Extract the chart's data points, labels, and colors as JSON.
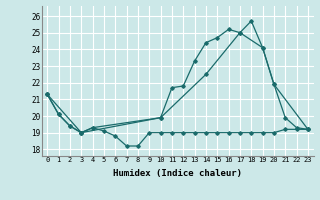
{
  "title": "",
  "xlabel": "Humidex (Indice chaleur)",
  "ylabel": "",
  "background_color": "#cce8e8",
  "grid_color": "#ffffff",
  "line_color": "#1a6b6b",
  "x_ticks": [
    0,
    1,
    2,
    3,
    4,
    5,
    6,
    7,
    8,
    9,
    10,
    11,
    12,
    13,
    14,
    15,
    16,
    17,
    18,
    19,
    20,
    21,
    22,
    23
  ],
  "y_ticks": [
    18,
    19,
    20,
    21,
    22,
    23,
    24,
    25,
    26
  ],
  "ylim": [
    17.6,
    26.6
  ],
  "xlim": [
    -0.5,
    23.5
  ],
  "line1_x": [
    0,
    1,
    2,
    3,
    4,
    5,
    6,
    7,
    8,
    9,
    10,
    11,
    12,
    13,
    14,
    15,
    16,
    17,
    18,
    19,
    20,
    21,
    22,
    23
  ],
  "line1_y": [
    21.3,
    20.1,
    19.4,
    19.0,
    19.3,
    19.1,
    18.8,
    18.2,
    18.2,
    19.0,
    19.0,
    19.0,
    19.0,
    19.0,
    19.0,
    19.0,
    19.0,
    19.0,
    19.0,
    19.0,
    19.0,
    19.2,
    19.2,
    19.2
  ],
  "line2_x": [
    0,
    1,
    2,
    3,
    4,
    10,
    11,
    12,
    13,
    14,
    15,
    16,
    17,
    18,
    19,
    20,
    21,
    22,
    23
  ],
  "line2_y": [
    21.3,
    20.1,
    19.4,
    19.0,
    19.3,
    19.9,
    21.7,
    21.8,
    23.3,
    24.4,
    24.7,
    25.2,
    25.0,
    25.7,
    24.1,
    21.9,
    19.9,
    19.3,
    19.2
  ],
  "line3_x": [
    0,
    3,
    10,
    14,
    17,
    19,
    20,
    23
  ],
  "line3_y": [
    21.3,
    19.0,
    19.9,
    22.5,
    25.0,
    24.1,
    21.9,
    19.2
  ]
}
